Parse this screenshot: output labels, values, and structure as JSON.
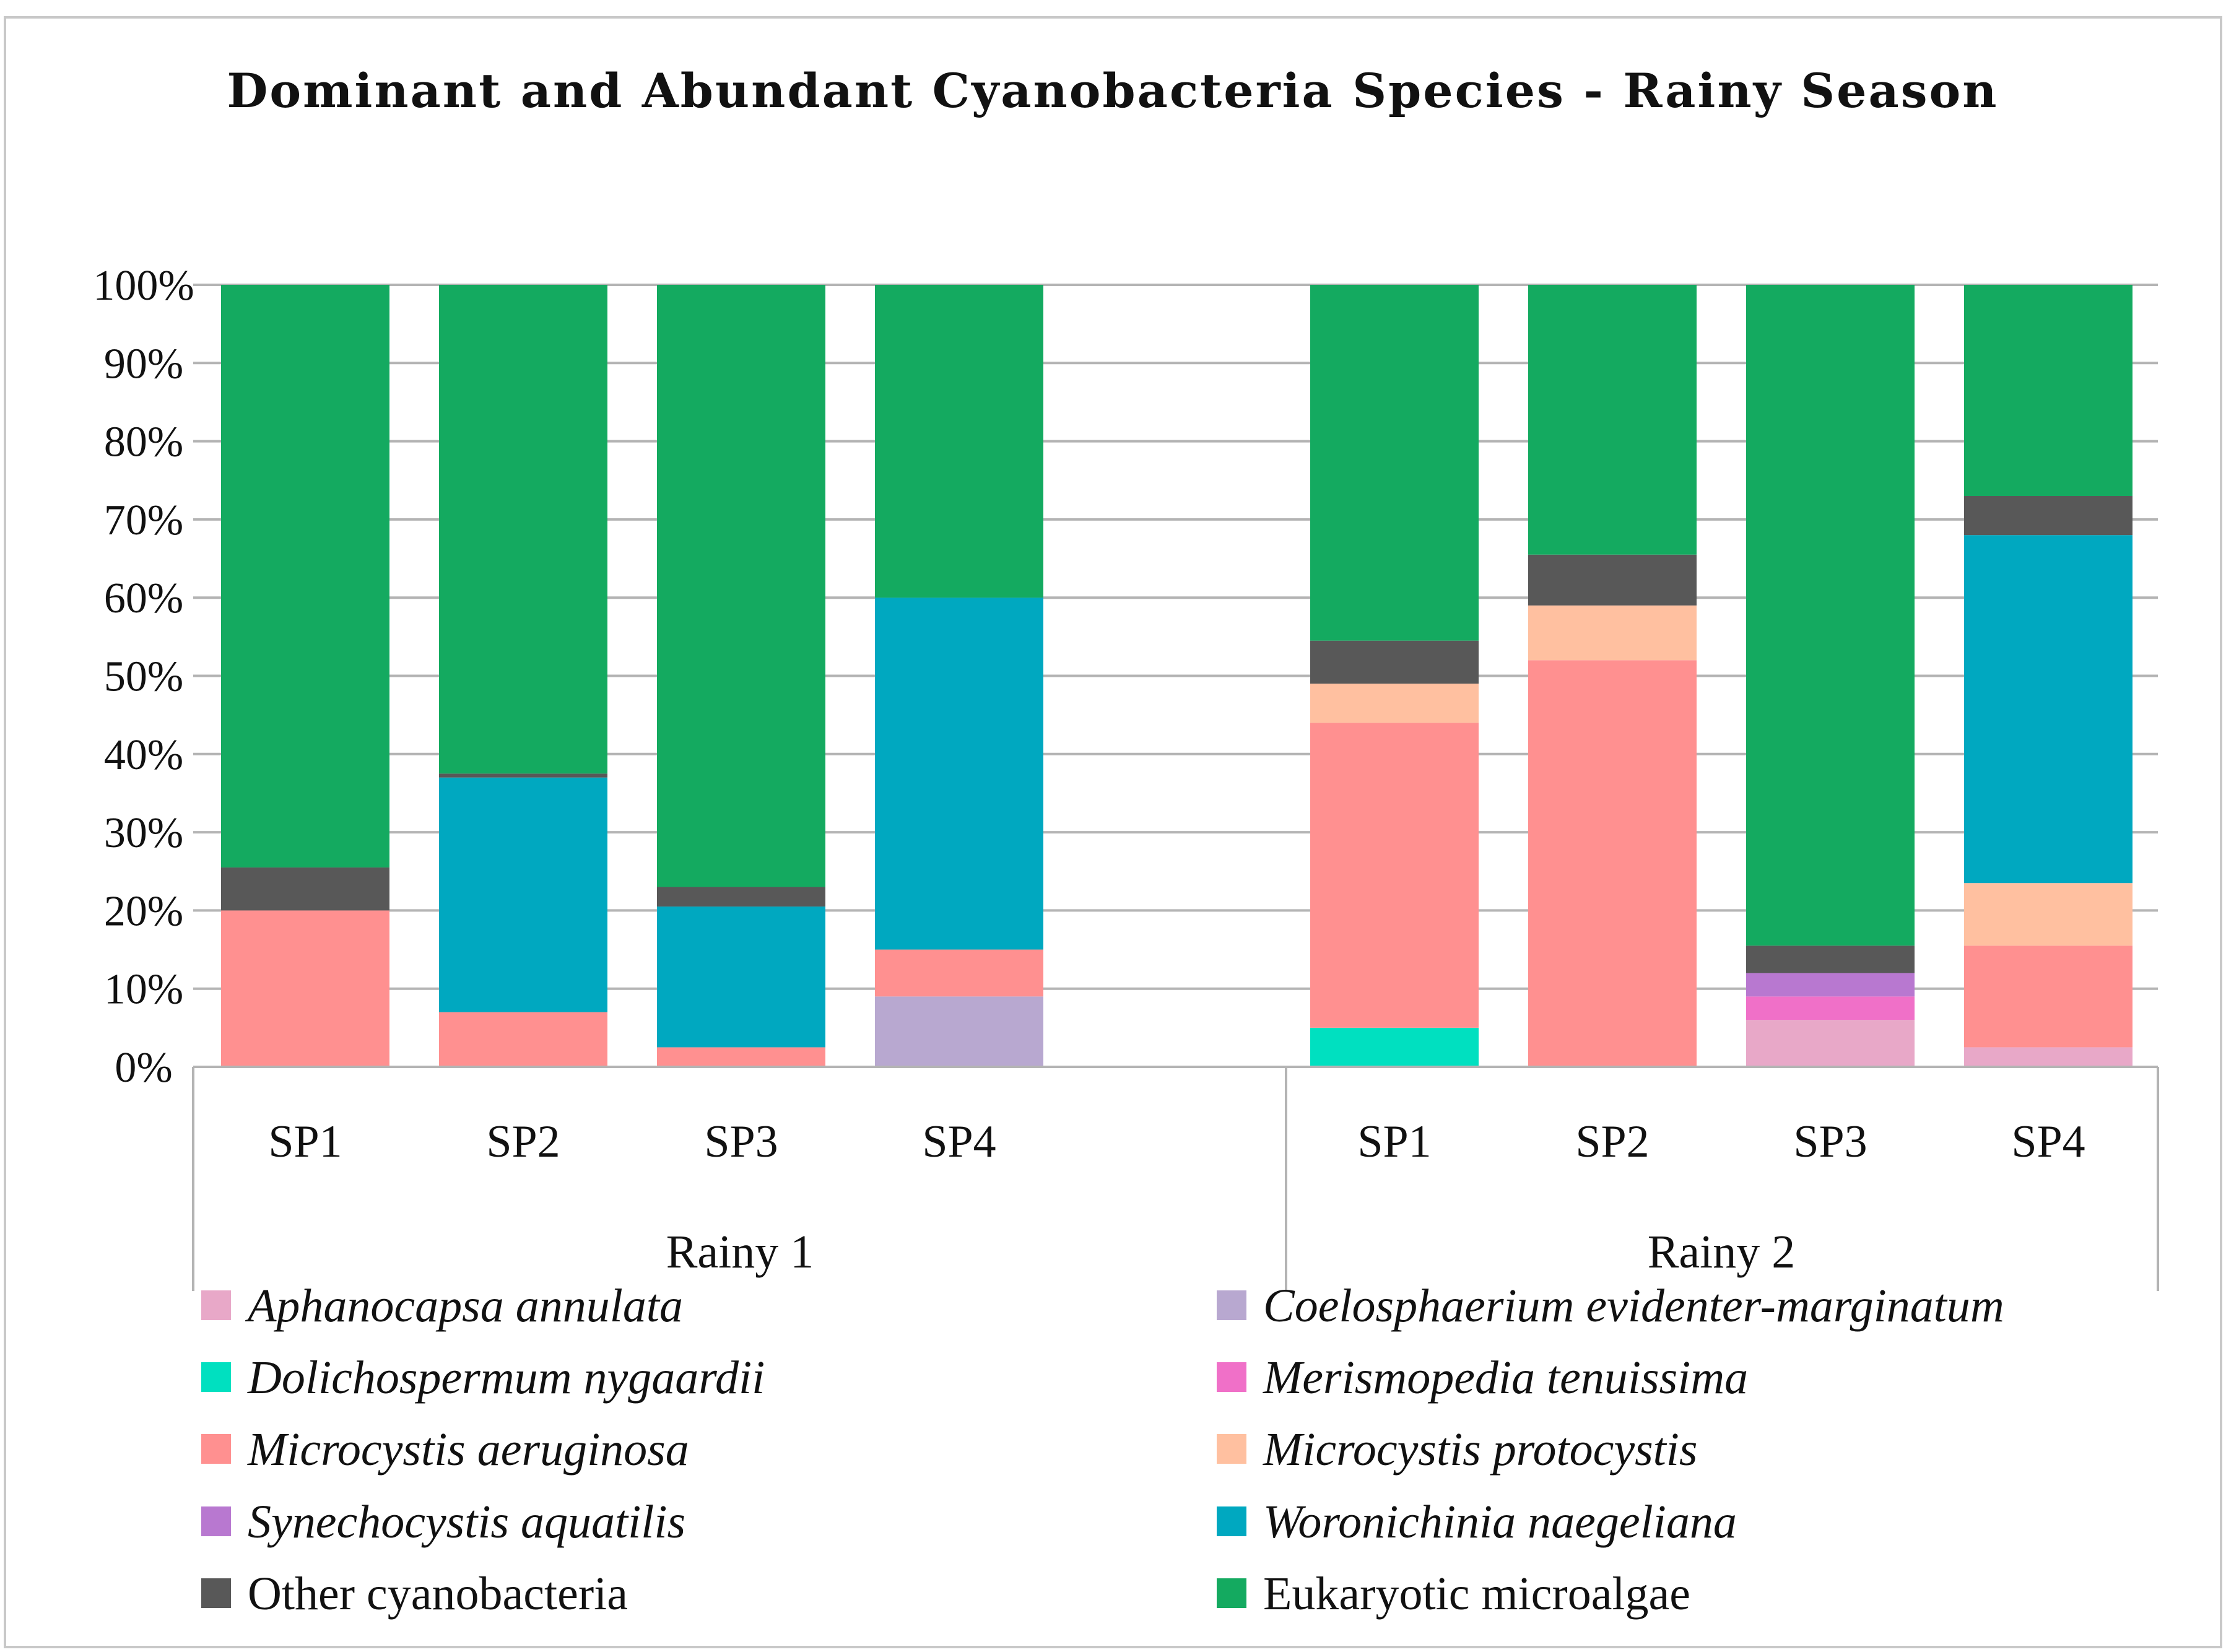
{
  "chart_data": {
    "type": "bar",
    "stacked": true,
    "title": "Dominant and Abundant Cyanobacteria Species - Rainy Season",
    "y_tick_labels": [
      "0%",
      "10%",
      "20%",
      "30%",
      "40%",
      "50%",
      "60%",
      "70%",
      "80%",
      "90%",
      "100%"
    ],
    "ylim": [
      0,
      100
    ],
    "grid": true,
    "legend_position": "bottom",
    "groups": [
      {
        "name": "Rainy 1",
        "categories": [
          "SP1",
          "SP2",
          "SP3",
          "SP4"
        ]
      },
      {
        "name": "Rainy 2",
        "categories": [
          "SP1",
          "SP2",
          "SP3",
          "SP4"
        ]
      }
    ],
    "bar_labels": [
      "Rainy 1 SP1",
      "Rainy 1 SP2",
      "Rainy 1 SP3",
      "Rainy 1 SP4",
      "Rainy 2 SP1",
      "Rainy 2 SP2",
      "Rainy 2 SP3",
      "Rainy 2 SP4"
    ],
    "series": [
      {
        "name": "Aphanocapsa annulata",
        "italic": true,
        "color": "#e8a8c8",
        "values": [
          0,
          0,
          0,
          0,
          0,
          0,
          6,
          2.5
        ]
      },
      {
        "name": "Coelosphaerium evidenter-marginatum",
        "italic": true,
        "color": "#b8a8d0",
        "values": [
          0,
          0,
          0,
          9,
          0,
          0,
          0,
          0
        ]
      },
      {
        "name": "Dolichospermum nygaardii",
        "italic": true,
        "color": "#00e0c0",
        "values": [
          0,
          0,
          0,
          0,
          5,
          0,
          0,
          0
        ]
      },
      {
        "name": "Merismopedia tenuissima",
        "italic": true,
        "color": "#f070c8",
        "values": [
          0,
          0,
          0,
          0,
          0,
          0,
          3,
          0
        ]
      },
      {
        "name": "Microcystis aeruginosa",
        "italic": true,
        "color": "#ff9090",
        "values": [
          20,
          7,
          2.5,
          6,
          39,
          52,
          0,
          13
        ]
      },
      {
        "name": "Microcystis protocystis",
        "italic": true,
        "color": "#ffc0a0",
        "values": [
          0,
          0,
          0,
          0,
          5,
          7,
          0,
          8
        ]
      },
      {
        "name": "Synechocystis aquatilis",
        "italic": true,
        "color": "#b878d0",
        "values": [
          0,
          0,
          0,
          0,
          0,
          0,
          3,
          0
        ]
      },
      {
        "name": "Woronichinia naegeliana",
        "italic": true,
        "color": "#00a8c0",
        "values": [
          0,
          30,
          18,
          45,
          0,
          0,
          0,
          44.5
        ]
      },
      {
        "name": "Other cyanobacteria",
        "italic": false,
        "color": "#585858",
        "values": [
          5.5,
          0.5,
          2.5,
          0,
          5.5,
          6.5,
          3.5,
          5
        ]
      },
      {
        "name": "Eukaryotic microalgae",
        "italic": false,
        "color": "#14aa60",
        "values": [
          74.5,
          62.5,
          77,
          40,
          45.5,
          34.5,
          84.5,
          27
        ]
      }
    ]
  }
}
